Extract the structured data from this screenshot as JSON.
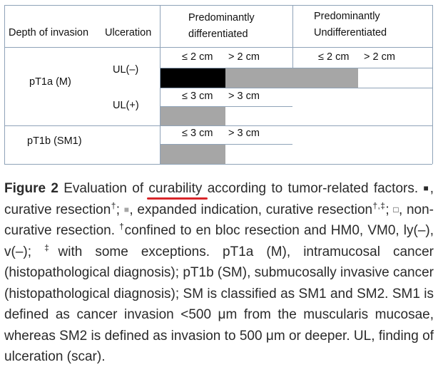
{
  "table": {
    "headers": {
      "depth": "Depth of invasion",
      "ulceration": "Ulceration",
      "pred_diff_1": "Predominantly",
      "pred_diff_2": "differentiated",
      "pred_undiff_1": "Predominantly",
      "pred_undiff_2": "Undifferentiated"
    },
    "rows": {
      "pt1a": "pT1a (M)",
      "ul_neg": "UL(–)",
      "ul_pos": "UL(+)",
      "pt1b": "pT1b (SM1)"
    },
    "size_labels": {
      "le2": "≤ 2 cm",
      "gt2": "> 2 cm",
      "le3": "≤ 3 cm",
      "gt3": "> 3 cm"
    },
    "cells": {
      "pt1a_ulneg_diff_le2": "curative resection",
      "pt1a_ulneg_diff_gt2": "expanded indication, curative resection",
      "pt1a_ulneg_undiff_le2": "expanded indication, curative resection",
      "pt1a_ulneg_undiff_gt2": "non-curative resection",
      "pt1a_ulpos_diff_le3": "expanded indication, curative resection",
      "pt1a_ulpos_diff_gt3": "non-curative resection",
      "pt1b_diff_le3": "expanded indication, curative resection",
      "pt1b_diff_gt3": "non-curative resection"
    },
    "colors": {
      "curative": "#000000",
      "expanded": "#a6a6a6",
      "noncurative": "#ffffff",
      "grid": "#8fa3b8"
    }
  },
  "caption": {
    "label": "Figure 2",
    "t1": " Evaluation of ",
    "underlined": "curability",
    "t2": " according to tumor-related factors. ",
    "sq_black": "■",
    "t3": ", curative resection",
    "dagger": "†",
    "t4": "; ",
    "sq_gray": "■",
    "t5": ", expanded indication, curative resection",
    "dagger_ddagger": "†,‡",
    "t6": "; ",
    "sq_white": "□",
    "t7": ", non-curative resection. ",
    "dagger2": "†",
    "t8": "confined to en bloc resection and HM0, VM0, ly(–), v(–); ",
    "ddagger": "‡",
    "t9": "with some exceptions. pT1a (M), intramucosal cancer (histopathological diagnosis); pT1b (SM), submucosally invasive cancer (histopathological diagnosis); SM is classified as SM1 and SM2. SM1 is defined as cancer invasion <500 μm from the muscularis mucosae, whereas SM2 is defined as invasion to 500 μm or deeper. UL, finding of ulceration (scar)."
  }
}
